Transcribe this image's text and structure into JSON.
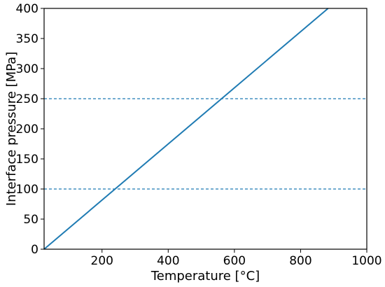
{
  "chart_data": {
    "type": "line",
    "title": "",
    "xlabel": "Temperature [°C]",
    "ylabel": "Interface pressure [MPa]",
    "xlim": [
      25,
      1000
    ],
    "ylim": [
      0,
      400
    ],
    "x_ticks": [
      200,
      400,
      600,
      800,
      1000
    ],
    "y_ticks": [
      0,
      50,
      100,
      150,
      200,
      250,
      300,
      350,
      400
    ],
    "grid": false,
    "legend": "none",
    "series": [
      {
        "x": [
          25,
          883
        ],
        "y": [
          0,
          400
        ],
        "color": "#1f7bb3",
        "style": "solid"
      }
    ],
    "reference_lines": [
      {
        "axis": "y",
        "value": 100,
        "color": "#1f7bb3",
        "style": "dashed"
      },
      {
        "axis": "y",
        "value": 250,
        "color": "#1f7bb3",
        "style": "dashed"
      }
    ]
  }
}
